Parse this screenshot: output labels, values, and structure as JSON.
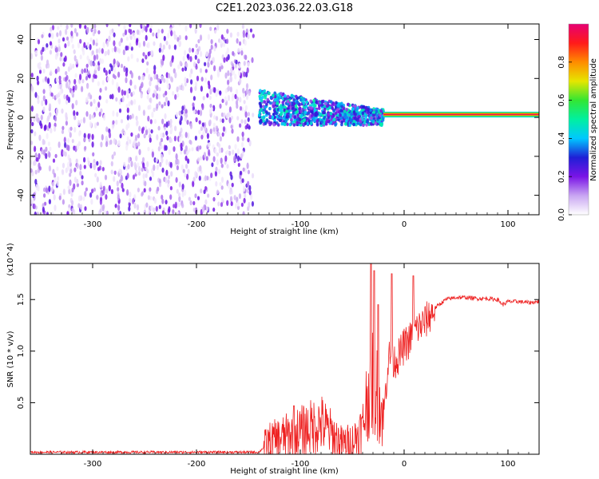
{
  "figure_title": "C2E1.2023.036.22.03.G18",
  "chart_data": [
    {
      "type": "heatmap",
      "title": "",
      "xlabel": "Height of straight line (km)",
      "ylabel": "Frequency (Hz)",
      "xlim": [
        -360,
        130
      ],
      "ylim": [
        -50,
        48
      ],
      "xticks": [
        -300,
        -200,
        -100,
        0,
        100
      ],
      "yticks": [
        -40,
        -20,
        0,
        20,
        40
      ],
      "colorbar": {
        "label": "Normalized spectral amplitude",
        "range": [
          0.0,
          1.0
        ],
        "ticks": [
          0.0,
          0.2,
          0.4,
          0.6,
          0.8
        ],
        "colormap": [
          "#ffffff",
          "#c9a6f2",
          "#7a14e6",
          "#1f1fd6",
          "#00c8ff",
          "#00f0a0",
          "#33e633",
          "#e6e600",
          "#ff8c00",
          "#ff1a1a",
          "#e60073"
        ]
      },
      "regions": [
        {
          "x_range": [
            -360,
            -145
          ],
          "freq_range": [
            -50,
            48
          ],
          "amplitude": [
            0.02,
            0.25
          ],
          "description": "broadband noise"
        },
        {
          "x_range": [
            -140,
            -20
          ],
          "freq_center": [
            5,
            0
          ],
          "freq_halfwidth": [
            9,
            4
          ],
          "amplitude": [
            0.15,
            0.5
          ]
        },
        {
          "x_range": [
            -20,
            130
          ],
          "freq_center": 1.5,
          "freq_halfwidth": 1.2,
          "amplitude": [
            0.85,
            1.0
          ]
        }
      ]
    },
    {
      "type": "line",
      "title": "",
      "xlabel": "Height of straight line (km)",
      "ylabel": "SNR (10 * v/v)",
      "y_multiplier": "(x10^4)",
      "xlim": [
        -360,
        130
      ],
      "ylim": [
        0,
        1.85
      ],
      "xticks": [
        -300,
        -200,
        -100,
        0,
        100
      ],
      "yticks": [
        0.5,
        1.0,
        1.5
      ],
      "series": [
        {
          "color": "#ee2222",
          "x": [
            -360,
            -300,
            -200,
            -140,
            -130,
            -100,
            -80,
            -60,
            -50,
            -40,
            -35,
            -30,
            -25,
            -20,
            -15,
            -10,
            -5,
            0,
            5,
            10,
            20,
            30,
            40,
            50,
            60,
            70,
            80,
            90,
            95,
            100,
            110,
            120,
            130
          ],
          "y": [
            0.02,
            0.02,
            0.02,
            0.02,
            0.12,
            0.22,
            0.3,
            0.1,
            0.12,
            0.25,
            0.6,
            0.7,
            0.55,
            0.35,
            0.95,
            0.9,
            0.95,
            1.05,
            1.1,
            1.2,
            1.28,
            1.42,
            1.5,
            1.52,
            1.52,
            1.51,
            1.51,
            1.5,
            1.45,
            1.48,
            1.48,
            1.47,
            1.48
          ],
          "spikes": [
            {
              "x": -106,
              "y": 0.47
            },
            {
              "x": -32,
              "y": 1.85
            },
            {
              "x": -29,
              "y": 1.78
            },
            {
              "x": -25,
              "y": 1.45
            },
            {
              "x": -12,
              "y": 1.75
            },
            {
              "x": 9,
              "y": 1.73
            }
          ]
        }
      ]
    }
  ]
}
